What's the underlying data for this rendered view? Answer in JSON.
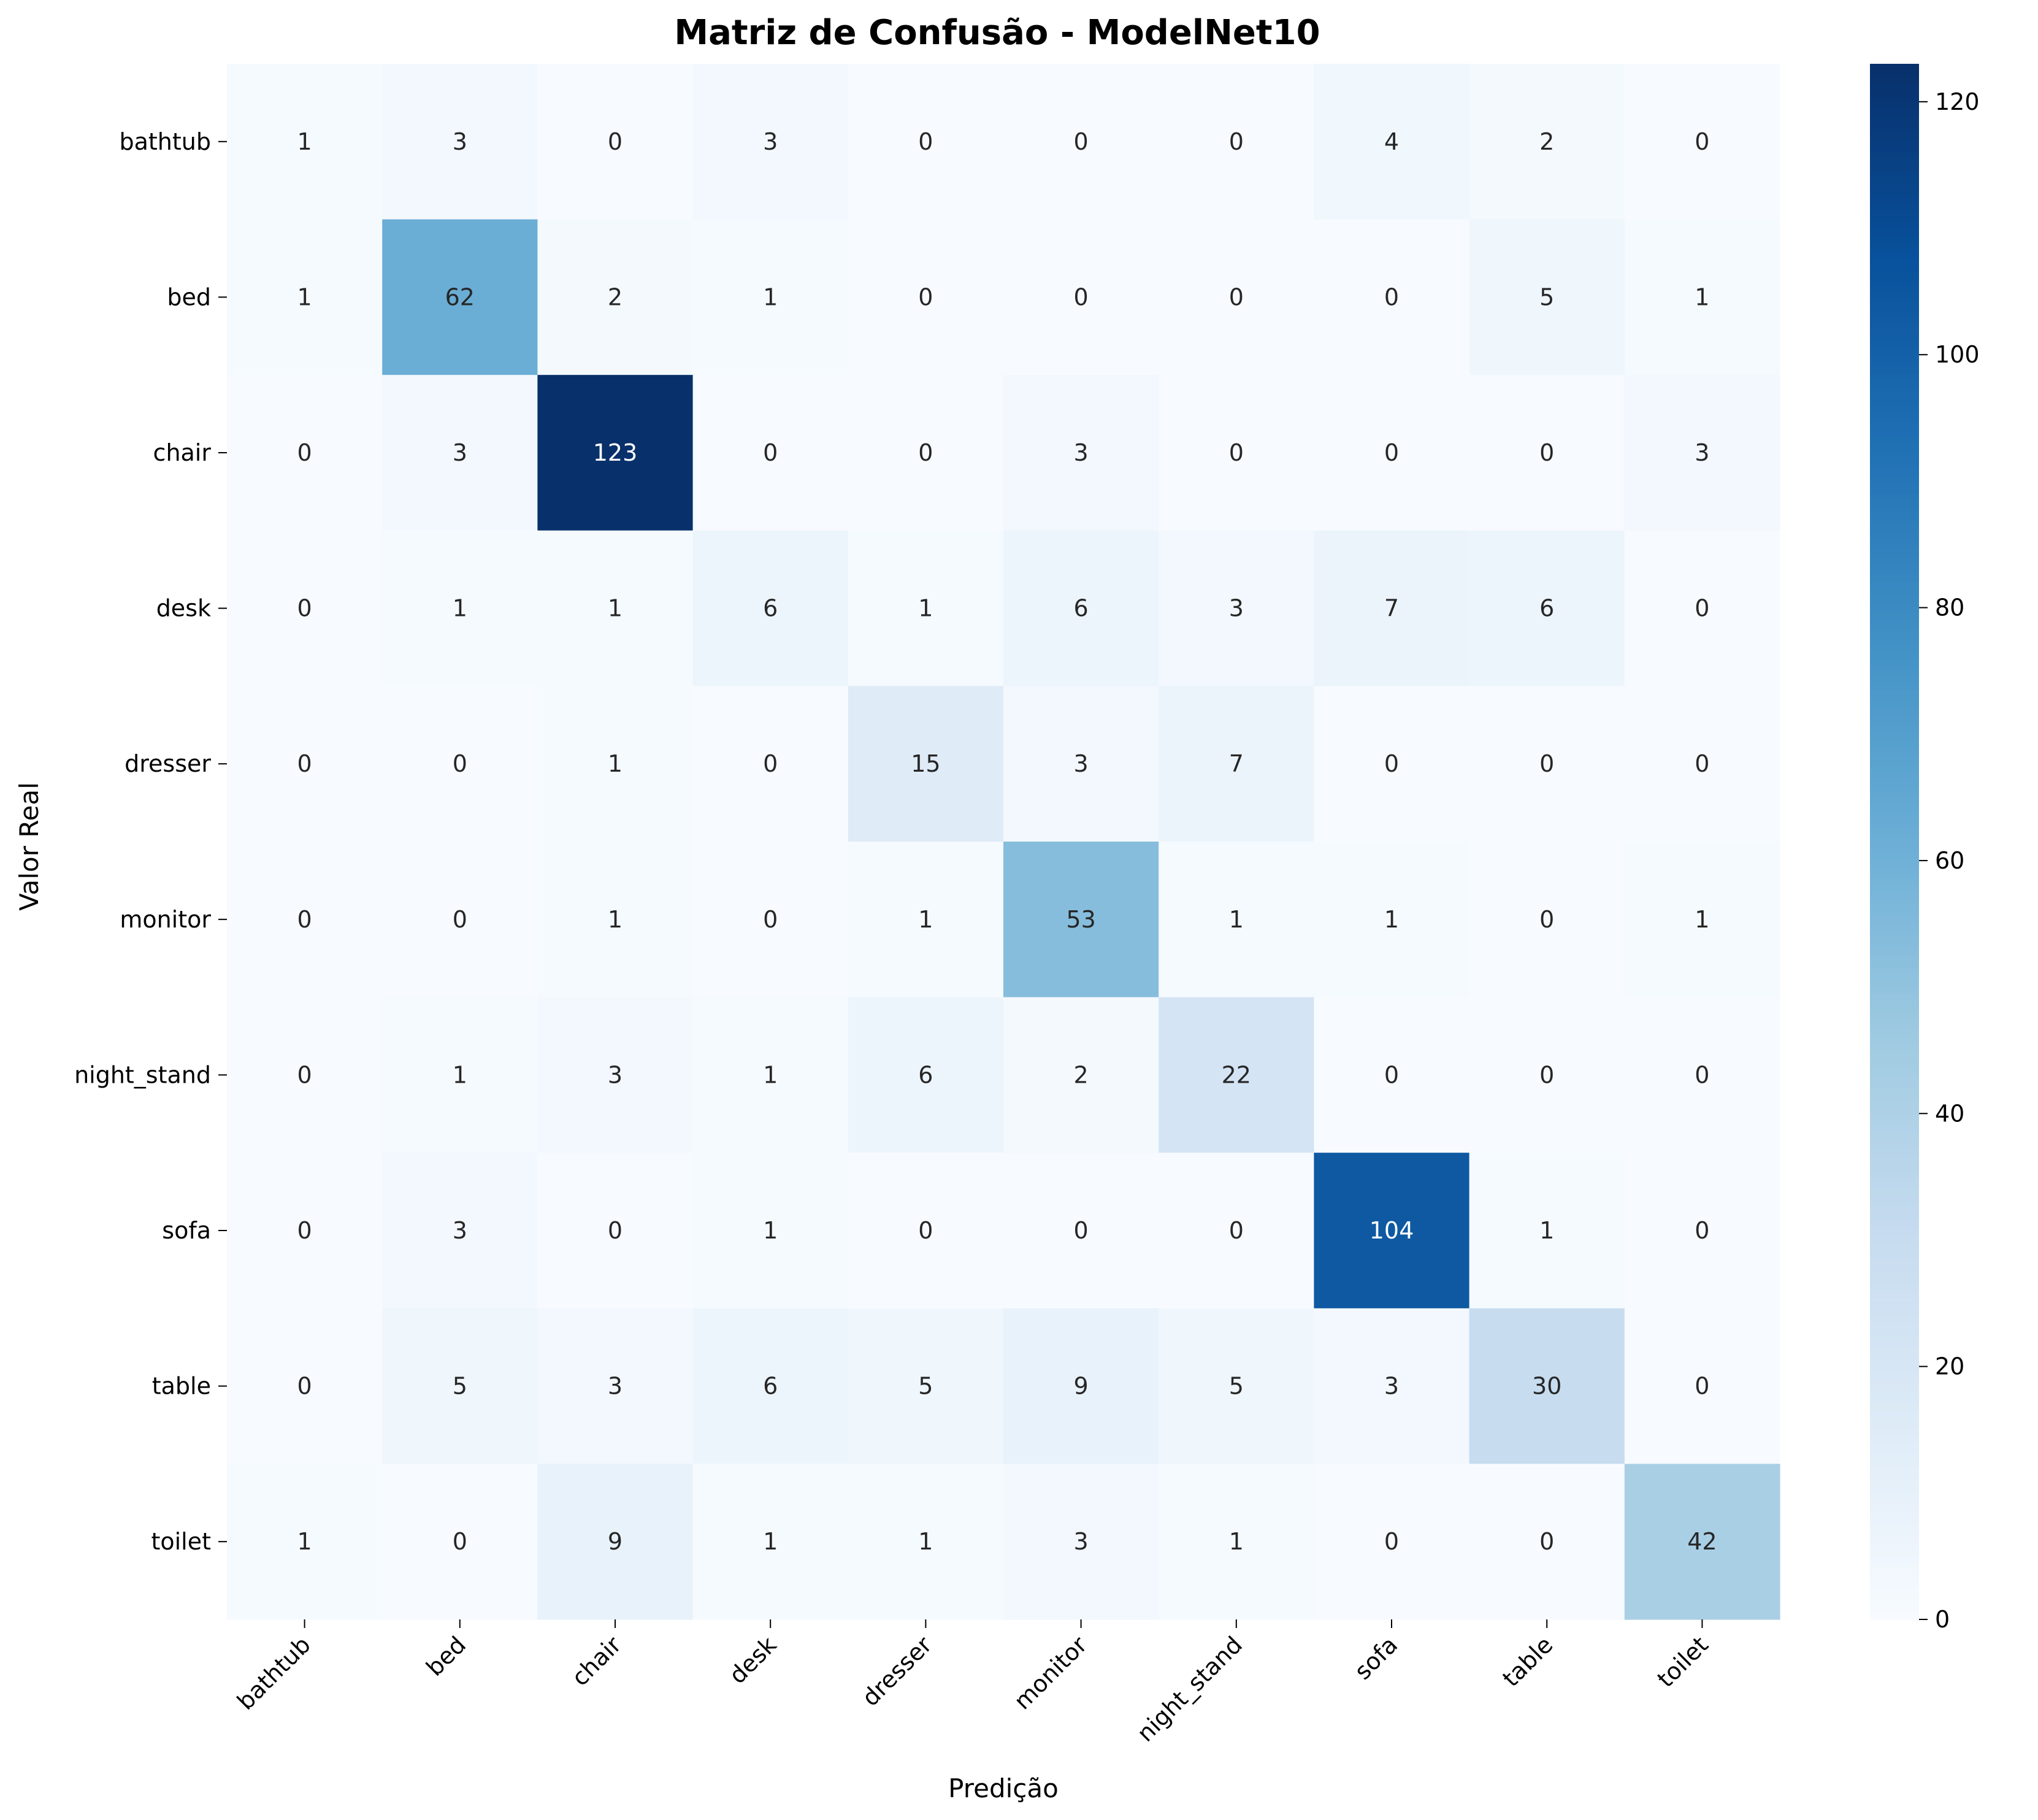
{
  "chart_data": {
    "type": "heatmap",
    "title": "Matriz de Confusão - ModelNet10",
    "xlabel": "Predição",
    "ylabel": "Valor Real",
    "x_categories": [
      "bathtub",
      "bed",
      "chair",
      "desk",
      "dresser",
      "monitor",
      "night_stand",
      "sofa",
      "table",
      "toilet"
    ],
    "y_categories": [
      "bathtub",
      "bed",
      "chair",
      "desk",
      "dresser",
      "monitor",
      "night_stand",
      "sofa",
      "table",
      "toilet"
    ],
    "values": [
      [
        1,
        3,
        0,
        3,
        0,
        0,
        0,
        4,
        2,
        0
      ],
      [
        1,
        62,
        2,
        1,
        0,
        0,
        0,
        0,
        5,
        1
      ],
      [
        0,
        3,
        123,
        0,
        0,
        3,
        0,
        0,
        0,
        3
      ],
      [
        0,
        1,
        1,
        6,
        1,
        6,
        3,
        7,
        6,
        0
      ],
      [
        0,
        0,
        1,
        0,
        15,
        3,
        7,
        0,
        0,
        0
      ],
      [
        0,
        0,
        1,
        0,
        1,
        53,
        1,
        1,
        0,
        1
      ],
      [
        0,
        1,
        3,
        1,
        6,
        2,
        22,
        0,
        0,
        0
      ],
      [
        0,
        3,
        0,
        1,
        0,
        0,
        0,
        104,
        1,
        0
      ],
      [
        0,
        5,
        3,
        6,
        5,
        9,
        5,
        3,
        30,
        0
      ],
      [
        1,
        0,
        9,
        1,
        1,
        3,
        1,
        0,
        0,
        42
      ]
    ],
    "colormap": "Blues",
    "colormap_stops": [
      "#f7fbff",
      "#deebf7",
      "#c6dbef",
      "#9ecae1",
      "#6baed6",
      "#4292c6",
      "#2171b5",
      "#08519c",
      "#08306b"
    ],
    "vmin": 0,
    "vmax": 123,
    "colorbar_ticks": [
      0,
      20,
      40,
      60,
      80,
      100,
      120
    ],
    "grid": false,
    "x_tick_rotation": 45
  }
}
